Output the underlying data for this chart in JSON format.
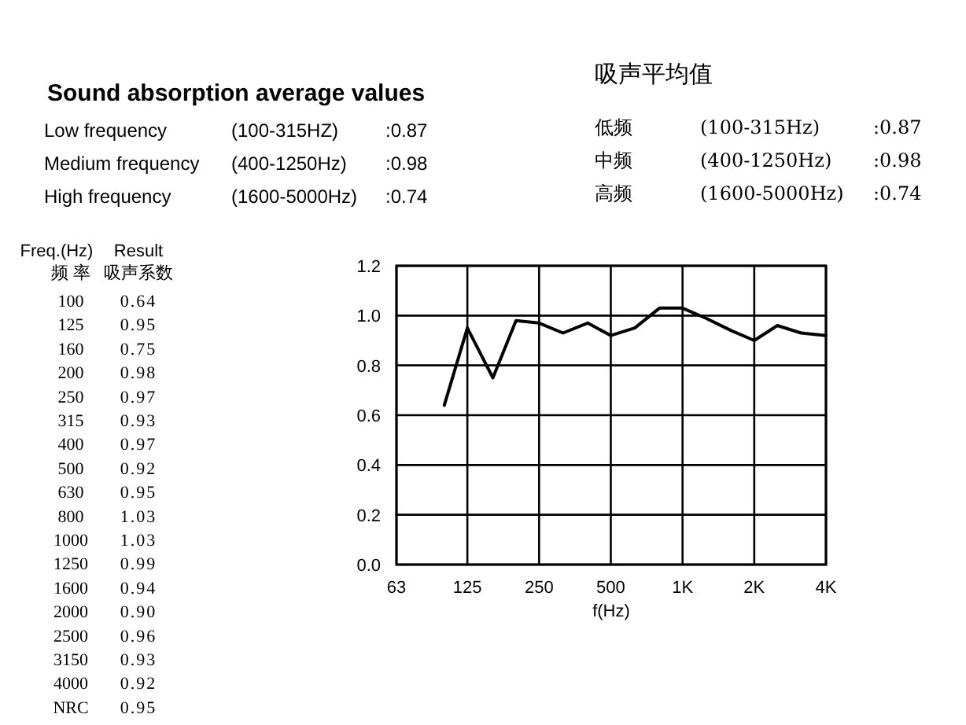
{
  "chart_data": {
    "type": "line",
    "title": "Sound absorption average values",
    "subtitle": "吸声平均值",
    "xlabel": "f(Hz)",
    "annotations": [
      "Low frequency",
      "(100-315HZ)",
      ":0.87",
      "Medium frequency",
      "(400-1250Hz)",
      ":0.98",
      "High frequency",
      "(1600-5000Hz)",
      ":0.74",
      "低频",
      "(100-315Hz)",
      ":0.87",
      "中频",
      "(400-1250Hz)",
      ":0.98",
      "高频",
      "(1600-5000Hz)",
      ":0.74",
      "Freq.(Hz)",
      "频 率",
      "Result",
      "吸声系数",
      "100",
      "0.64",
      "125",
      "0.95",
      "160",
      "0.75",
      "200",
      "0.98",
      "250",
      "0.97",
      "315",
      "0.93",
      "400",
      "0.97",
      "500",
      "0.92",
      "630",
      "0.95",
      "800",
      "1.03",
      "1000",
      "1.03",
      "1250",
      "0.99",
      "1600",
      "0.94",
      "2000",
      "0.90",
      "2500",
      "0.96",
      "3150",
      "0.93",
      "4000",
      "0.92",
      "NRC",
      "0.95"
    ],
    "x": [
      100,
      125,
      160,
      200,
      250,
      315,
      400,
      500,
      630,
      800,
      1000,
      1250,
      1600,
      2000,
      2500,
      3150,
      4000
    ],
    "series": [
      {
        "color": "#000000",
        "values": [
          0.64,
          0.95,
          0.75,
          0.98,
          0.97,
          0.93,
          0.97,
          0.92,
          0.95,
          1.03,
          1.03,
          0.99,
          0.94,
          0.9,
          0.96,
          0.93,
          0.92
        ]
      }
    ],
    "log": "x",
    "xlim": [
      63,
      4000
    ],
    "ylim": [
      0,
      1.2
    ],
    "xticks": [
      63,
      125,
      250,
      500,
      {
        "value": 1000,
        "label": "1K"
      },
      {
        "value": 2000,
        "label": "2K"
      },
      {
        "value": 4000,
        "label": "4K"
      }
    ],
    "yticks": [
      {
        "value": 0,
        "label": "0.0"
      },
      {
        "value": 0.2,
        "label": "0.2"
      },
      {
        "value": 0.4,
        "label": "0.4"
      },
      {
        "value": 0.6,
        "label": "0.6"
      },
      {
        "value": 0.8,
        "label": "0.8"
      },
      {
        "value": 1,
        "label": "1.0"
      },
      {
        "value": 1.2,
        "label": "1.2"
      }
    ],
    "grid": true,
    "marker": "none",
    "line_style": "solid"
  }
}
